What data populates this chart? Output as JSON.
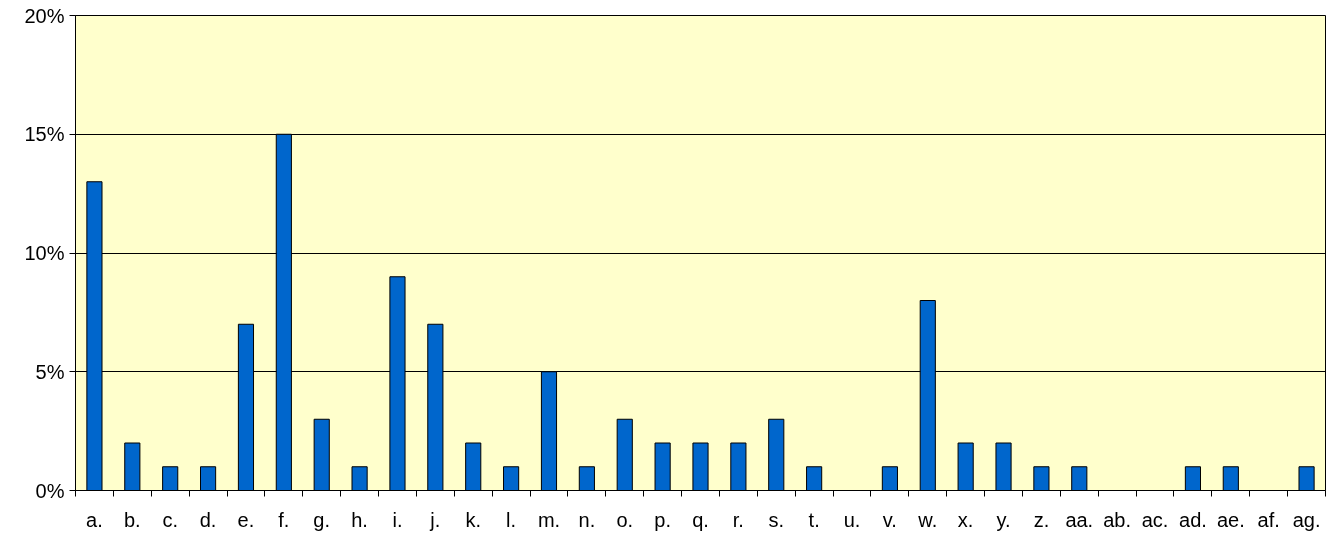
{
  "chart_data": {
    "type": "bar",
    "categories": [
      "a.",
      "b.",
      "c.",
      "d.",
      "e.",
      "f.",
      "g.",
      "h.",
      "i.",
      "j.",
      "k.",
      "l.",
      "m.",
      "n.",
      "o.",
      "p.",
      "q.",
      "r.",
      "s.",
      "t.",
      "u.",
      "v.",
      "w.",
      "x.",
      "y.",
      "z.",
      "aa.",
      "ab.",
      "ac.",
      "ad.",
      "ae.",
      "af.",
      "ag."
    ],
    "values": [
      13,
      2,
      1,
      1,
      7,
      15,
      3,
      1,
      9,
      7,
      2,
      1,
      5,
      1,
      3,
      2,
      2,
      2,
      3,
      1,
      0,
      1,
      8,
      2,
      2,
      1,
      1,
      0,
      0,
      1,
      1,
      0,
      1
    ],
    "color": "#0066cc",
    "ylim": [
      0,
      20
    ],
    "yticks": [
      {
        "value": 0,
        "label": "0%"
      },
      {
        "value": 5,
        "label": "5%"
      },
      {
        "value": 10,
        "label": "10%"
      },
      {
        "value": 15,
        "label": "15%"
      },
      {
        "value": 20,
        "label": "20%"
      }
    ],
    "grid": "y"
  }
}
